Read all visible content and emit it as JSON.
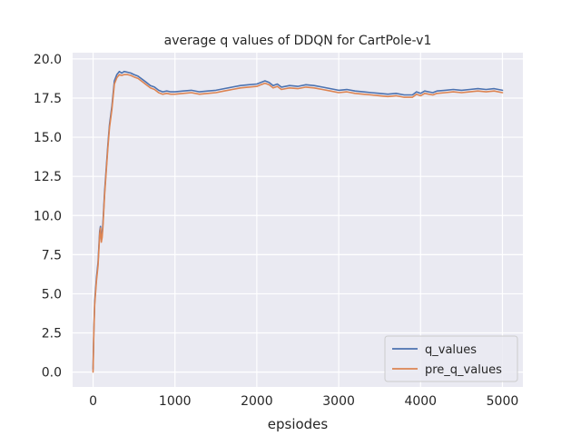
{
  "chart_data": {
    "type": "line",
    "title": "average q values of DDQN for CartPole-v1",
    "xlabel": "epsiodes",
    "ylabel": "",
    "xlim": [
      -250,
      5250
    ],
    "ylim": [
      -0.95,
      20.4
    ],
    "x_ticks": [
      0,
      1000,
      2000,
      3000,
      4000,
      5000
    ],
    "y_ticks": [
      0.0,
      2.5,
      5.0,
      7.5,
      10.0,
      12.5,
      15.0,
      17.5,
      20.0
    ],
    "x_tick_labels": [
      "0",
      "1000",
      "2000",
      "3000",
      "4000",
      "5000"
    ],
    "y_tick_labels": [
      "0.0",
      "2.5",
      "5.0",
      "7.5",
      "10.0",
      "12.5",
      "15.0",
      "17.5",
      "20.0"
    ],
    "grid": true,
    "background": "#eaeaf2",
    "legend_position": "lower-right",
    "series": [
      {
        "name": "q_values",
        "color": "#4c72b0",
        "x": [
          0,
          10,
          20,
          40,
          60,
          80,
          90,
          100,
          110,
          120,
          130,
          140,
          160,
          180,
          200,
          230,
          260,
          290,
          320,
          350,
          380,
          420,
          460,
          500,
          550,
          600,
          650,
          700,
          750,
          800,
          850,
          900,
          950,
          1000,
          1100,
          1200,
          1300,
          1400,
          1500,
          1600,
          1700,
          1800,
          1900,
          2000,
          2050,
          2100,
          2150,
          2200,
          2250,
          2300,
          2350,
          2400,
          2500,
          2600,
          2700,
          2800,
          2900,
          3000,
          3100,
          3200,
          3300,
          3400,
          3500,
          3600,
          3700,
          3800,
          3900,
          3950,
          4000,
          4050,
          4100,
          4150,
          4200,
          4300,
          4400,
          4500,
          4600,
          4700,
          4800,
          4900,
          5000
        ],
        "y": [
          0.2,
          2.8,
          4.5,
          6.0,
          7.0,
          9.0,
          9.3,
          8.5,
          8.8,
          9.5,
          10.5,
          11.5,
          13.0,
          14.5,
          15.8,
          17.0,
          18.6,
          19.0,
          19.2,
          19.1,
          19.2,
          19.15,
          19.1,
          19.0,
          18.9,
          18.7,
          18.5,
          18.3,
          18.2,
          18.0,
          17.9,
          17.95,
          17.9,
          17.9,
          17.95,
          18.0,
          17.9,
          17.95,
          18.0,
          18.1,
          18.2,
          18.3,
          18.35,
          18.4,
          18.5,
          18.6,
          18.5,
          18.3,
          18.4,
          18.2,
          18.25,
          18.3,
          18.25,
          18.35,
          18.3,
          18.2,
          18.1,
          18.0,
          18.05,
          17.95,
          17.9,
          17.85,
          17.8,
          17.75,
          17.8,
          17.7,
          17.7,
          17.9,
          17.8,
          17.95,
          17.9,
          17.85,
          17.95,
          18.0,
          18.05,
          18.0,
          18.05,
          18.1,
          18.05,
          18.1,
          18.0
        ]
      },
      {
        "name": "pre_q_values",
        "color": "#dd8452",
        "x": [
          0,
          10,
          20,
          40,
          60,
          80,
          90,
          100,
          110,
          120,
          130,
          140,
          160,
          180,
          200,
          230,
          260,
          290,
          320,
          350,
          380,
          420,
          460,
          500,
          550,
          600,
          650,
          700,
          750,
          800,
          850,
          900,
          950,
          1000,
          1100,
          1200,
          1300,
          1400,
          1500,
          1600,
          1700,
          1800,
          1900,
          2000,
          2050,
          2100,
          2150,
          2200,
          2250,
          2300,
          2350,
          2400,
          2500,
          2600,
          2700,
          2800,
          2900,
          3000,
          3100,
          3200,
          3300,
          3400,
          3500,
          3600,
          3700,
          3800,
          3900,
          3950,
          4000,
          4050,
          4100,
          4150,
          4200,
          4300,
          4400,
          4500,
          4600,
          4700,
          4800,
          4900,
          5000
        ],
        "y": [
          0.0,
          2.6,
          4.3,
          5.8,
          6.8,
          8.8,
          9.2,
          8.3,
          8.6,
          9.3,
          10.3,
          11.3,
          12.8,
          14.3,
          15.6,
          16.8,
          18.4,
          18.8,
          19.0,
          18.95,
          19.0,
          19.0,
          18.95,
          18.85,
          18.75,
          18.55,
          18.35,
          18.15,
          18.05,
          17.85,
          17.75,
          17.8,
          17.75,
          17.75,
          17.8,
          17.85,
          17.75,
          17.8,
          17.85,
          17.95,
          18.05,
          18.15,
          18.2,
          18.25,
          18.35,
          18.45,
          18.35,
          18.15,
          18.25,
          18.05,
          18.1,
          18.15,
          18.1,
          18.2,
          18.15,
          18.05,
          17.95,
          17.85,
          17.9,
          17.8,
          17.75,
          17.7,
          17.65,
          17.6,
          17.65,
          17.55,
          17.55,
          17.75,
          17.65,
          17.8,
          17.75,
          17.7,
          17.8,
          17.85,
          17.9,
          17.85,
          17.9,
          17.95,
          17.9,
          17.95,
          17.85
        ]
      }
    ]
  }
}
